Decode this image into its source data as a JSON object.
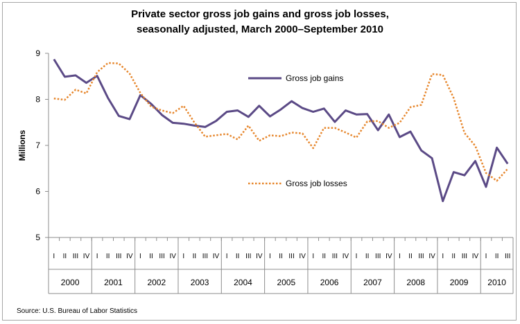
{
  "chart_data": {
    "type": "line",
    "title": "Private sector gross job gains and gross job losses, seasonally adjusted, March 2000–September 2010",
    "title_lines": [
      "Private sector gross job gains and gross job losses,",
      "seasonally adjusted, March 2000–September 2010"
    ],
    "ylabel": "Millions",
    "ylim": [
      5,
      9
    ],
    "yticks": [
      "5",
      "6",
      "7",
      "8",
      "9"
    ],
    "grid": false,
    "legend": "inside",
    "quarter_labels": [
      "I",
      "II",
      "III",
      "IV"
    ],
    "years": [
      "2000",
      "2001",
      "2002",
      "2003",
      "2004",
      "2005",
      "2006",
      "2007",
      "2008",
      "2009",
      "2010"
    ],
    "series": [
      {
        "name": "Gross job gains",
        "style": "solid",
        "color": "#5b4a86",
        "values": [
          8.87,
          8.49,
          8.52,
          8.36,
          8.51,
          8.03,
          7.64,
          7.57,
          8.09,
          7.9,
          7.66,
          7.49,
          7.47,
          7.43,
          7.4,
          7.53,
          7.73,
          7.76,
          7.62,
          7.86,
          7.63,
          7.78,
          7.96,
          7.81,
          7.73,
          7.8,
          7.51,
          7.76,
          7.67,
          7.68,
          7.33,
          7.67,
          7.18,
          7.3,
          6.89,
          6.72,
          5.79,
          6.42,
          6.35,
          6.66,
          6.1,
          6.95,
          6.6
        ]
      },
      {
        "name": "Gross job losses",
        "style": "dotted",
        "color": "#e6852a",
        "values": [
          8.02,
          7.99,
          8.21,
          8.13,
          8.59,
          8.79,
          8.78,
          8.56,
          8.14,
          7.84,
          7.76,
          7.7,
          7.86,
          7.5,
          7.19,
          7.22,
          7.25,
          7.13,
          7.43,
          7.1,
          7.22,
          7.2,
          7.28,
          7.26,
          6.94,
          7.38,
          7.38,
          7.28,
          7.17,
          7.52,
          7.53,
          7.38,
          7.49,
          7.83,
          7.88,
          8.55,
          8.53,
          8.03,
          7.27,
          6.99,
          6.4,
          6.23,
          6.49
        ]
      }
    ]
  },
  "source": "Source: U.S. Bureau of Labor Statistics"
}
